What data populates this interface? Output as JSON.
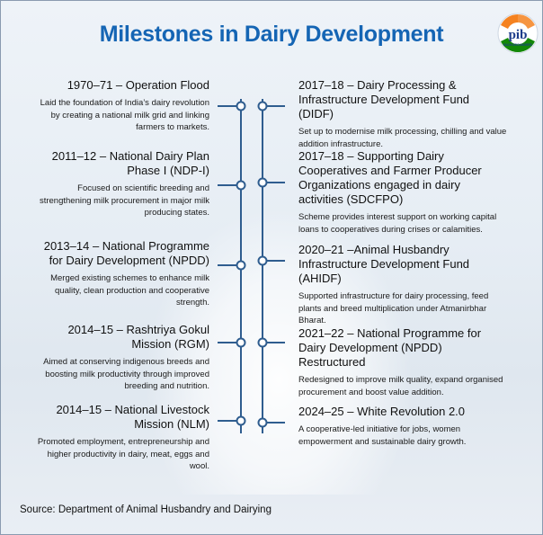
{
  "page": {
    "title": "Milestones in Dairy Development",
    "source": "Source: Department of Animal Husbandry and Dairying",
    "logo_text": "pib",
    "logo_subtext": "BACKGROUNDERS"
  },
  "colors": {
    "title": "#1565b4",
    "line": "#2f5d8f",
    "saffron": "#f58220",
    "green": "#138808"
  },
  "left_milestones": [
    {
      "title": "1970–71 – Operation Flood",
      "desc": "Laid the foundation of India’s dairy revolution by creating a national milk grid and linking farmers to markets."
    },
    {
      "title": "2011–12 – National Dairy Plan Phase I (NDP-I)",
      "desc": "Focused on scientific breeding and strengthening milk procurement in major milk producing states."
    },
    {
      "title": "2013–14 – National Programme for Dairy Development (NPDD)",
      "desc": "Merged existing schemes to enhance milk quality, clean production and cooperative strength."
    },
    {
      "title": "2014–15 – Rashtriya Gokul Mission (RGM)",
      "desc": "Aimed at conserving indigenous breeds and boosting milk productivity through improved breeding and nutrition."
    },
    {
      "title": "2014–15 – National Livestock Mission (NLM)",
      "desc": "Promoted employment, entrepreneurship and higher productivity in dairy, meat, eggs and wool."
    }
  ],
  "right_milestones": [
    {
      "title": "2017–18 – Dairy Processing & Infrastructure Development Fund (DIDF)",
      "desc": "Set up to modernise milk processing, chilling and value addition infrastructure."
    },
    {
      "title": "2017–18 – Supporting Dairy Cooperatives and Farmer Producer Organizations engaged in dairy activities (SDCFPO)",
      "desc": "Scheme provides interest support on working capital loans to cooperatives during crises or calamities."
    },
    {
      "title": "2020–21 –Animal Husbandry Infrastructure Development Fund (AHIDF)",
      "desc": "Supported infrastructure for dairy processing, feed plants and breed multiplication under Atmanirbhar Bharat."
    },
    {
      "title": "2021–22 – National Programme for Dairy Development (NPDD) Restructured",
      "desc": "Redesigned to improve milk quality, expand organised procurement and boost value addition."
    },
    {
      "title": "2024–25 – White Revolution 2.0",
      "desc": "A cooperative-led initiative for jobs, women empowerment and sustainable dairy growth."
    }
  ]
}
